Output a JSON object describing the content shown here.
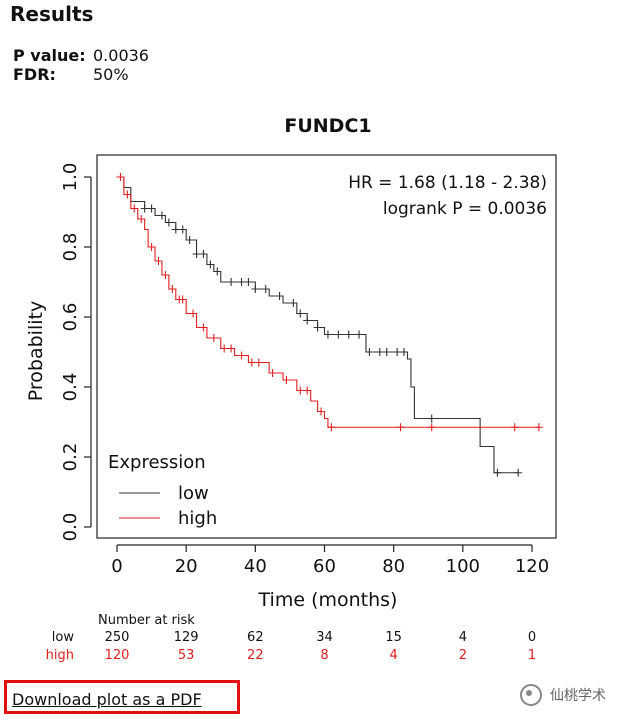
{
  "header": {
    "title": "Results"
  },
  "stats": {
    "p_label": "P value:",
    "p_value": "0.0036",
    "fdr_label": "FDR:",
    "fdr_value": "50%"
  },
  "download": {
    "label": "Download plot as a PDF"
  },
  "watermark": {
    "text": "仙桃学术"
  },
  "chart_data": {
    "type": "line",
    "title": "FUNDC1",
    "xlabel": "Time (months)",
    "ylabel": "Probability",
    "xlim": [
      0,
      125
    ],
    "ylim": [
      0,
      1
    ],
    "xticks": [
      0,
      20,
      40,
      60,
      80,
      100,
      120
    ],
    "yticks": [
      0.0,
      0.2,
      0.4,
      0.6,
      0.8,
      1.0
    ],
    "annotations": {
      "hr": "HR = 1.68 (1.18 - 2.38)",
      "logrank": "logrank P = 0.0036"
    },
    "legend": {
      "title": "Expression",
      "position": "bottom-left"
    },
    "series": [
      {
        "name": "low",
        "color": "#333333",
        "steps": [
          [
            0,
            1.0
          ],
          [
            2,
            0.97
          ],
          [
            4,
            0.93
          ],
          [
            8,
            0.91
          ],
          [
            11,
            0.89
          ],
          [
            14,
            0.87
          ],
          [
            17,
            0.85
          ],
          [
            20,
            0.82
          ],
          [
            23,
            0.78
          ],
          [
            26,
            0.75
          ],
          [
            28,
            0.73
          ],
          [
            30,
            0.7
          ],
          [
            36,
            0.7
          ],
          [
            40,
            0.68
          ],
          [
            44,
            0.66
          ],
          [
            48,
            0.64
          ],
          [
            52,
            0.61
          ],
          [
            55,
            0.59
          ],
          [
            58,
            0.57
          ],
          [
            60,
            0.55
          ],
          [
            68,
            0.55
          ],
          [
            72,
            0.5
          ],
          [
            83,
            0.5
          ],
          [
            84,
            0.48
          ],
          [
            85,
            0.4
          ],
          [
            86,
            0.31
          ],
          [
            104,
            0.31
          ],
          [
            105,
            0.23
          ],
          [
            109,
            0.155
          ],
          [
            116,
            0.155
          ]
        ],
        "censor": [
          8,
          10,
          13,
          15,
          17,
          19,
          21,
          23,
          25,
          27,
          29,
          33,
          36,
          38,
          40,
          43,
          47,
          51,
          53,
          55,
          58,
          61,
          64,
          67,
          70,
          73,
          76,
          78,
          81,
          83,
          91,
          110,
          116
        ]
      },
      {
        "name": "high",
        "color": "#e02020",
        "steps": [
          [
            0,
            1.0
          ],
          [
            2,
            0.95
          ],
          [
            4,
            0.91
          ],
          [
            6,
            0.88
          ],
          [
            8,
            0.85
          ],
          [
            9,
            0.8
          ],
          [
            11,
            0.76
          ],
          [
            13,
            0.72
          ],
          [
            15,
            0.68
          ],
          [
            17,
            0.65
          ],
          [
            20,
            0.61
          ],
          [
            23,
            0.57
          ],
          [
            26,
            0.54
          ],
          [
            30,
            0.51
          ],
          [
            34,
            0.49
          ],
          [
            38,
            0.47
          ],
          [
            44,
            0.44
          ],
          [
            48,
            0.42
          ],
          [
            52,
            0.39
          ],
          [
            56,
            0.36
          ],
          [
            58,
            0.33
          ],
          [
            60,
            0.31
          ],
          [
            61,
            0.285
          ],
          [
            122,
            0.285
          ]
        ],
        "censor": [
          1,
          3,
          5,
          7,
          10,
          12,
          14,
          16,
          18,
          19,
          22,
          25,
          28,
          31,
          33,
          36,
          39,
          41,
          45,
          49,
          53,
          55,
          59,
          62,
          82,
          91,
          115,
          122
        ]
      }
    ],
    "risk_table": {
      "title": "Number at risk",
      "times": [
        0,
        20,
        40,
        60,
        80,
        100,
        120
      ],
      "rows": [
        {
          "name": "low",
          "values": [
            "250",
            "129",
            "62",
            "34",
            "15",
            "4",
            "0"
          ]
        },
        {
          "name": "high",
          "values": [
            "120",
            "53",
            "22",
            "8",
            "4",
            "2",
            "1"
          ]
        }
      ]
    }
  }
}
